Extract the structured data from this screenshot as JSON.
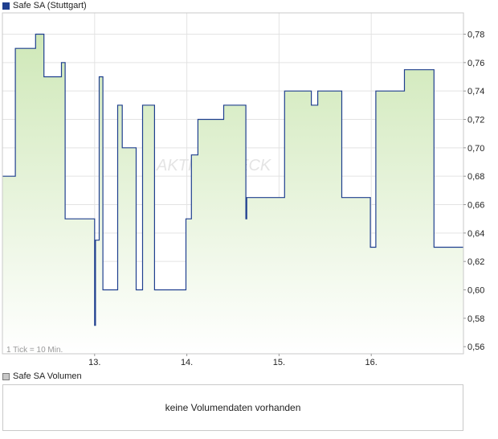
{
  "price_panel": {
    "legend_label": "Safe SA (Stuttgart)",
    "series_color": "#1f3f8f",
    "fill_color": "#cfe8b8"
  },
  "volume_panel": {
    "legend_label": "Safe SA Volumen",
    "message": "keine Volumendaten vorhanden"
  },
  "tick_note": "1 Tick = 10 Min.",
  "watermark": "AKTIENCHECK",
  "chart_data": {
    "type": "area",
    "title": "Safe SA (Stuttgart)",
    "xlabel": "",
    "ylabel": "",
    "ylim": [
      0.555,
      0.795
    ],
    "yticks": [
      0.56,
      0.58,
      0.6,
      0.62,
      0.64,
      0.66,
      0.68,
      0.7,
      0.72,
      0.74,
      0.76,
      0.78
    ],
    "ytick_labels": [
      "0,56",
      "0,58",
      "0,60",
      "0,62",
      "0,64",
      "0,66",
      "0,68",
      "0,70",
      "0,72",
      "0,74",
      "0,76",
      "0,78"
    ],
    "x_ticks": [
      13,
      14,
      15,
      16
    ],
    "x_tick_labels": [
      "13.",
      "14.",
      "15.",
      "16."
    ],
    "xlim": [
      12.0,
      17.0
    ],
    "grid": true,
    "series": [
      {
        "name": "Safe SA (Stuttgart)",
        "points": [
          [
            12.0,
            0.68
          ],
          [
            12.14,
            0.68
          ],
          [
            12.14,
            0.77
          ],
          [
            12.36,
            0.77
          ],
          [
            12.36,
            0.78
          ],
          [
            12.45,
            0.78
          ],
          [
            12.45,
            0.75
          ],
          [
            12.64,
            0.75
          ],
          [
            12.64,
            0.76
          ],
          [
            12.68,
            0.76
          ],
          [
            12.68,
            0.65
          ],
          [
            13.0,
            0.65
          ],
          [
            13.0,
            0.575
          ],
          [
            13.01,
            0.575
          ],
          [
            13.01,
            0.635
          ],
          [
            13.05,
            0.635
          ],
          [
            13.05,
            0.75
          ],
          [
            13.09,
            0.75
          ],
          [
            13.09,
            0.6
          ],
          [
            13.25,
            0.6
          ],
          [
            13.25,
            0.73
          ],
          [
            13.3,
            0.73
          ],
          [
            13.3,
            0.7
          ],
          [
            13.45,
            0.7
          ],
          [
            13.45,
            0.6
          ],
          [
            13.52,
            0.6
          ],
          [
            13.52,
            0.73
          ],
          [
            13.65,
            0.73
          ],
          [
            13.65,
            0.6
          ],
          [
            13.99,
            0.6
          ],
          [
            13.99,
            0.65
          ],
          [
            14.05,
            0.65
          ],
          [
            14.05,
            0.695
          ],
          [
            14.12,
            0.695
          ],
          [
            14.12,
            0.72
          ],
          [
            14.4,
            0.72
          ],
          [
            14.4,
            0.73
          ],
          [
            14.64,
            0.73
          ],
          [
            14.64,
            0.65
          ],
          [
            14.65,
            0.65
          ],
          [
            14.65,
            0.665
          ],
          [
            15.06,
            0.665
          ],
          [
            15.06,
            0.74
          ],
          [
            15.35,
            0.74
          ],
          [
            15.35,
            0.73
          ],
          [
            15.42,
            0.73
          ],
          [
            15.42,
            0.74
          ],
          [
            15.68,
            0.74
          ],
          [
            15.68,
            0.665
          ],
          [
            15.99,
            0.665
          ],
          [
            15.99,
            0.63
          ],
          [
            16.05,
            0.63
          ],
          [
            16.05,
            0.74
          ],
          [
            16.36,
            0.74
          ],
          [
            16.36,
            0.755
          ],
          [
            16.68,
            0.755
          ],
          [
            16.68,
            0.63
          ],
          [
            17.0,
            0.63
          ]
        ]
      }
    ]
  }
}
